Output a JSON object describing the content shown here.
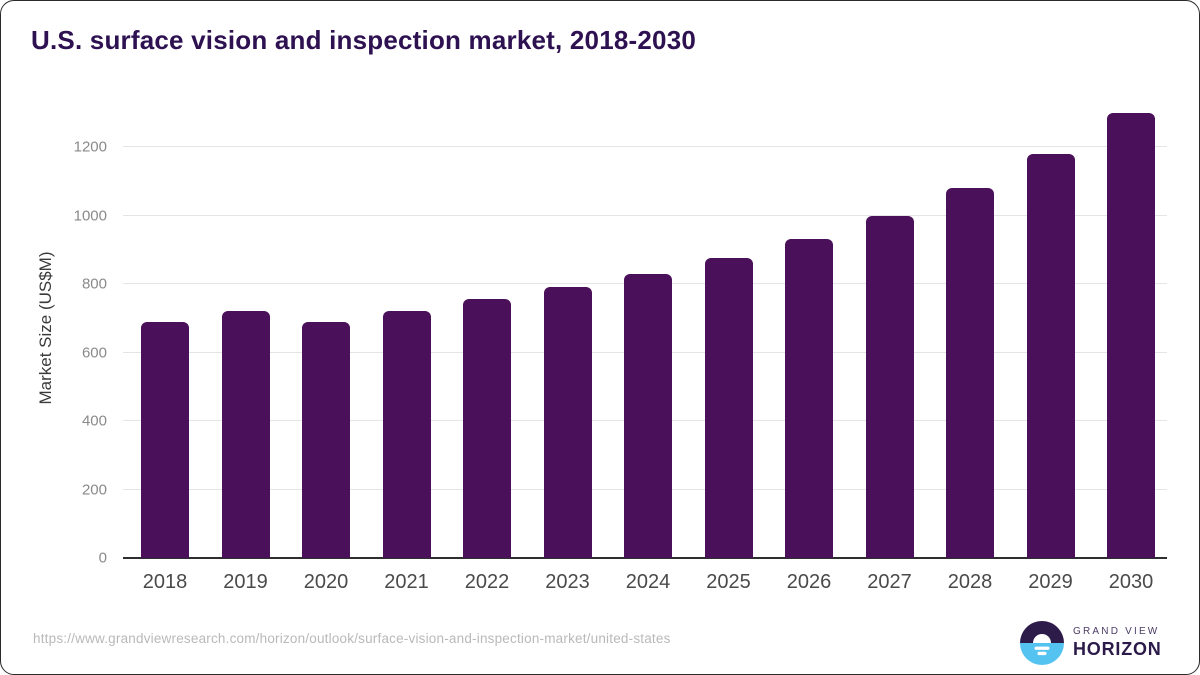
{
  "title": "U.S. surface vision and inspection market, 2018-2030",
  "y_axis_title": "Market Size (US$M)",
  "footer": {
    "source_url": "https://www.grandviewresearch.com/horizon/outlook/surface-vision-and-inspection-market/united-states",
    "logo_line1": "GRAND VIEW",
    "logo_line2": "HORIZON"
  },
  "colors": {
    "bar": "#4a105a",
    "title_text": "#2e1151",
    "gridline": "#e5e5e5",
    "axis_line": "#2e2e2e",
    "y_tick_text": "#8a8a8a",
    "x_tick_text": "#4a4a4a",
    "url_text": "#b9b9b9",
    "logo_dark": "#2d1b4a",
    "logo_blue": "#55c3f0"
  },
  "chart_data": {
    "type": "bar",
    "title": "U.S. surface vision and inspection market, 2018-2030",
    "categories": [
      "2018",
      "2019",
      "2020",
      "2021",
      "2022",
      "2023",
      "2024",
      "2025",
      "2026",
      "2027",
      "2028",
      "2029",
      "2030"
    ],
    "values": [
      690,
      720,
      690,
      720,
      755,
      790,
      830,
      875,
      930,
      1000,
      1080,
      1180,
      1300
    ],
    "xlabel": "",
    "ylabel": "Market Size (US$M)",
    "ylim": [
      0,
      1343
    ],
    "yticks": [
      0,
      200,
      400,
      600,
      800,
      1000,
      1200
    ],
    "grid": true,
    "legend": false,
    "bar_corner_radius": "rounded-top"
  }
}
